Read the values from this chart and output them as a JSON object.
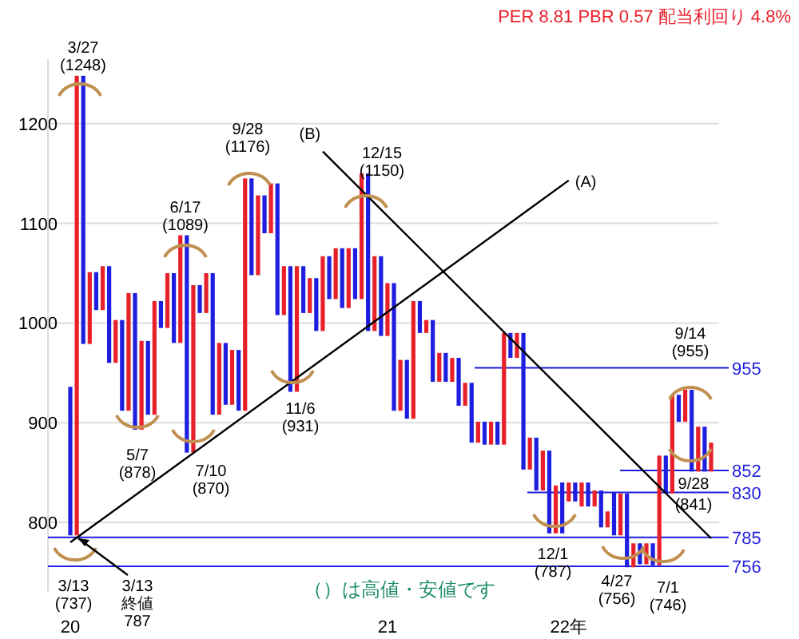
{
  "chart_data": {
    "type": "bar",
    "title": "PER 8.81 PBR 0.57 配当利回り 4.8%",
    "categories": [
      "20",
      null,
      null,
      null,
      null,
      null,
      null,
      null,
      null,
      null,
      null,
      null,
      null,
      null,
      null,
      null,
      null,
      null,
      null,
      null,
      null,
      null,
      null,
      null,
      null,
      null,
      null,
      null,
      null,
      null,
      null,
      null,
      null,
      null,
      null,
      null,
      null,
      null,
      null,
      null,
      null,
      null,
      null,
      null,
      null,
      null,
      null,
      null,
      null,
      "21",
      null,
      null,
      null,
      null,
      null,
      null,
      null,
      null,
      null,
      null,
      null,
      null,
      null,
      null,
      null,
      null,
      null,
      null,
      null,
      null,
      null,
      null,
      null,
      null,
      null,
      null,
      null,
      "22年",
      null,
      null,
      null,
      null,
      null,
      null,
      null,
      null,
      null,
      null,
      null,
      null,
      null,
      null,
      null,
      null,
      null,
      null,
      null,
      null,
      null,
      null
    ],
    "series": [
      {
        "values": [
          -149,
          461,
          -269,
          72,
          -38,
          44,
          -97,
          43,
          -91,
          118,
          -137,
          89,
          -74,
          114,
          -27,
          55,
          -70,
          108,
          -218,
          168,
          -28,
          40,
          -142,
          72,
          -62,
          55,
          -61,
          233,
          -97,
          80,
          -38,
          50,
          -132,
          49,
          -126,
          126,
          -47,
          35,
          -53,
          75,
          -43,
          51,
          -60,
          60,
          -51,
          126,
          -158,
          75,
          -80,
          53,
          -128,
          51,
          -59,
          118,
          -32,
          13,
          -62,
          29,
          -29,
          24,
          -48,
          23,
          -60,
          21,
          -23,
          23,
          -23,
          112,
          -25,
          25,
          -137,
          32,
          -53,
          40,
          -83,
          48,
          -51,
          19,
          -19,
          24,
          -24,
          16,
          -37,
          16,
          -43,
          42,
          -74,
          24,
          -21,
          21,
          -22,
          110,
          -38,
          99,
          -27,
          32,
          -82,
          45,
          -45,
          29
        ],
        "base": [
          936,
          787,
          1248,
          979,
          1051,
          1013,
          1057,
          960,
          1003,
          912,
          1030,
          893,
          982,
          908,
          1022,
          995,
          1050,
          980,
          1088,
          870,
          1038,
          1010,
          1050,
          908,
          980,
          918,
          973,
          912,
          1145,
          1048,
          1128,
          1090,
          1140,
          1008,
          1057,
          931,
          1057,
          1010,
          1045,
          992,
          1067,
          1024,
          1075,
          1015,
          1075,
          1024,
          1150,
          992,
          1067,
          987,
          1040,
          912,
          963,
          904,
          1022,
          990,
          1003,
          941,
          970,
          941,
          965,
          917,
          940,
          880,
          901,
          878,
          901,
          878,
          990,
          965,
          990,
          853,
          885,
          832,
          872,
          789,
          840,
          821,
          840,
          816,
          840,
          816,
          832,
          795,
          830,
          787,
          829,
          755,
          779,
          758,
          779,
          757,
          867,
          829,
          928,
          901,
          933,
          851,
          896,
          851
        ],
        "colors": [
          "#1e1ee0",
          "#e8202a",
          "#1e1ee0",
          "#e8202a",
          "#1e1ee0",
          "#e8202a",
          "#1e1ee0",
          "#e8202a",
          "#1e1ee0",
          "#e8202a",
          "#1e1ee0",
          "#e8202a",
          "#1e1ee0",
          "#e8202a",
          "#1e1ee0",
          "#e8202a",
          "#1e1ee0",
          "#e8202a",
          "#1e1ee0",
          "#e8202a",
          "#1e1ee0",
          "#e8202a",
          "#1e1ee0",
          "#e8202a",
          "#1e1ee0",
          "#e8202a",
          "#1e1ee0",
          "#e8202a",
          "#1e1ee0",
          "#e8202a",
          "#1e1ee0",
          "#e8202a",
          "#1e1ee0",
          "#e8202a",
          "#1e1ee0",
          "#e8202a",
          "#1e1ee0",
          "#e8202a",
          "#1e1ee0",
          "#e8202a",
          "#1e1ee0",
          "#e8202a",
          "#1e1ee0",
          "#e8202a",
          "#1e1ee0",
          "#e8202a",
          "#1e1ee0",
          "#e8202a",
          "#1e1ee0",
          "#e8202a",
          "#1e1ee0",
          "#e8202a",
          "#1e1ee0",
          "#e8202a",
          "#1e1ee0",
          "#e8202a",
          "#1e1ee0",
          "#e8202a",
          "#1e1ee0",
          "#e8202a",
          "#1e1ee0",
          "#e8202a",
          "#1e1ee0",
          "#e8202a",
          "#1e1ee0",
          "#e8202a",
          "#1e1ee0",
          "#e8202a",
          "#1e1ee0",
          "#e8202a",
          "#1e1ee0",
          "#e8202a",
          "#1e1ee0",
          "#e8202a",
          "#1e1ee0",
          "#e8202a",
          "#1e1ee0",
          "#e8202a",
          "#1e1ee0",
          "#e8202a",
          "#1e1ee0",
          "#e8202a",
          "#1e1ee0",
          "#e8202a",
          "#1e1ee0",
          "#e8202a",
          "#1e1ee0",
          "#e8202a",
          "#1e1ee0",
          "#e8202a",
          "#1e1ee0",
          "#e8202a",
          "#1e1ee0",
          "#e8202a",
          "#1e1ee0",
          "#e8202a",
          "#1e1ee0",
          "#e8202a",
          "#1e1ee0",
          "#e8202a"
        ]
      },
      {
        "type": "line",
        "name": "(A)",
        "color": "#000000",
        "values": [
          780,
          null,
          null,
          null,
          null,
          null,
          null,
          null,
          null,
          null,
          null,
          null,
          null,
          null,
          null,
          null,
          null,
          null,
          null,
          null,
          null,
          null,
          null,
          null,
          null,
          null,
          null,
          null,
          null,
          null,
          null,
          null,
          null,
          null,
          null,
          null,
          null,
          null,
          null,
          null,
          null,
          null,
          null,
          null,
          null,
          null,
          null,
          null,
          null,
          null,
          null,
          null,
          null,
          null,
          null,
          null,
          null,
          null,
          null,
          null,
          null,
          null,
          null,
          null,
          null,
          null,
          null,
          null,
          null,
          null,
          null,
          null,
          null,
          null,
          null,
          null,
          null,
          1143,
          null,
          null,
          null,
          null,
          null,
          null,
          null,
          null,
          null,
          null,
          null,
          null,
          null,
          null,
          null,
          null,
          null,
          null,
          null,
          null,
          null,
          null
        ]
      },
      {
        "type": "line",
        "name": "(B)",
        "color": "#000000",
        "values": [
          null,
          null,
          null,
          null,
          null,
          null,
          null,
          null,
          null,
          null,
          null,
          null,
          null,
          null,
          null,
          null,
          null,
          null,
          null,
          null,
          null,
          null,
          null,
          null,
          null,
          null,
          null,
          null,
          null,
          null,
          null,
          null,
          null,
          null,
          null,
          null,
          null,
          null,
          null,
          1172,
          null,
          null,
          null,
          null,
          null,
          null,
          null,
          null,
          null,
          null,
          null,
          null,
          null,
          null,
          null,
          null,
          null,
          null,
          null,
          null,
          null,
          null,
          null,
          null,
          null,
          null,
          null,
          null,
          null,
          null,
          null,
          null,
          null,
          null,
          null,
          null,
          null,
          null,
          null,
          null,
          null,
          null,
          null,
          null,
          null,
          null,
          null,
          null,
          null,
          null,
          null,
          null,
          null,
          null,
          null,
          null,
          null,
          null,
          null,
          784
        ]
      }
    ],
    "ylim": [
      730,
      1265
    ],
    "yticks": [
      800,
      900,
      1000,
      1100,
      1200
    ],
    "grid": "y",
    "ref_lines": [
      {
        "axis": "y",
        "value": 955,
        "label": "955",
        "color": "#1e1ee0"
      },
      {
        "axis": "y",
        "value": 852,
        "label": "852",
        "color": "#1e1ee0"
      },
      {
        "axis": "y",
        "value": 830,
        "label": "830",
        "color": "#1e1ee0"
      },
      {
        "axis": "y",
        "value": 785,
        "label": "785",
        "color": "#1e1ee0"
      },
      {
        "axis": "y",
        "value": 756,
        "label": "756",
        "color": "#1e1ee0"
      }
    ],
    "annotations": [
      "3/27\n(1248)",
      "3/13\n(737)",
      "3/13\n終値\n787",
      "5/7\n(878)",
      "6/17\n(1089)",
      "7/10\n(870)",
      "9/28\n(1176)",
      "11/6\n(931)",
      "12/15\n(1150)",
      "12/1\n(787)",
      "4/27\n(756)",
      "7/1\n(746)",
      "9/14\n(955)",
      "9/28\n(841)",
      "（）は高値・安値です"
    ]
  }
}
